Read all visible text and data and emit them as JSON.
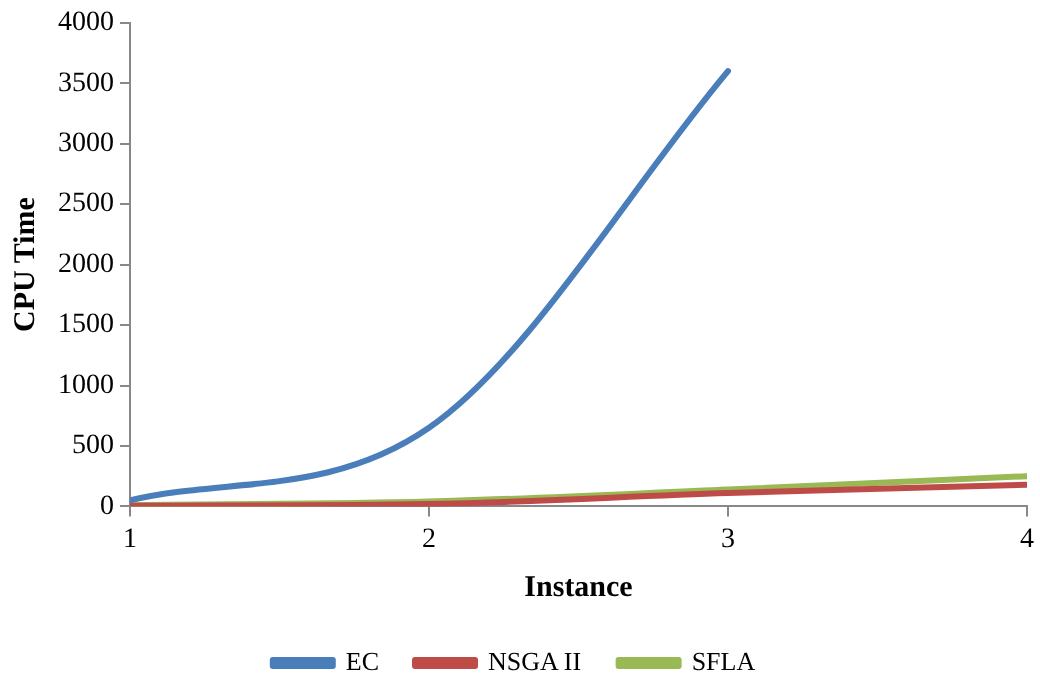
{
  "chart_data": {
    "type": "line",
    "xlabel": "Instance",
    "ylabel": "CPU Time",
    "xlim": [
      1,
      4
    ],
    "xticks": [
      1,
      2,
      3,
      4
    ],
    "ylim": [
      0,
      4000
    ],
    "yticks": [
      0,
      500,
      1000,
      1500,
      2000,
      2500,
      3000,
      3500,
      4000
    ],
    "grid": false,
    "legend": "bottom",
    "marker": "none",
    "line_style": "solid",
    "series": [
      {
        "name": "EC",
        "color": "#4a7ebb",
        "x": [
          1,
          2,
          3
        ],
        "values": [
          50,
          650,
          3600
        ]
      },
      {
        "name": "NSGA II",
        "color": "#be4b48",
        "x": [
          1,
          2,
          3,
          4
        ],
        "values": [
          5,
          20,
          110,
          180
        ]
      },
      {
        "name": "SFLA",
        "color": "#98b954",
        "x": [
          1,
          2,
          3,
          4
        ],
        "values": [
          10,
          40,
          140,
          250
        ]
      }
    ]
  }
}
